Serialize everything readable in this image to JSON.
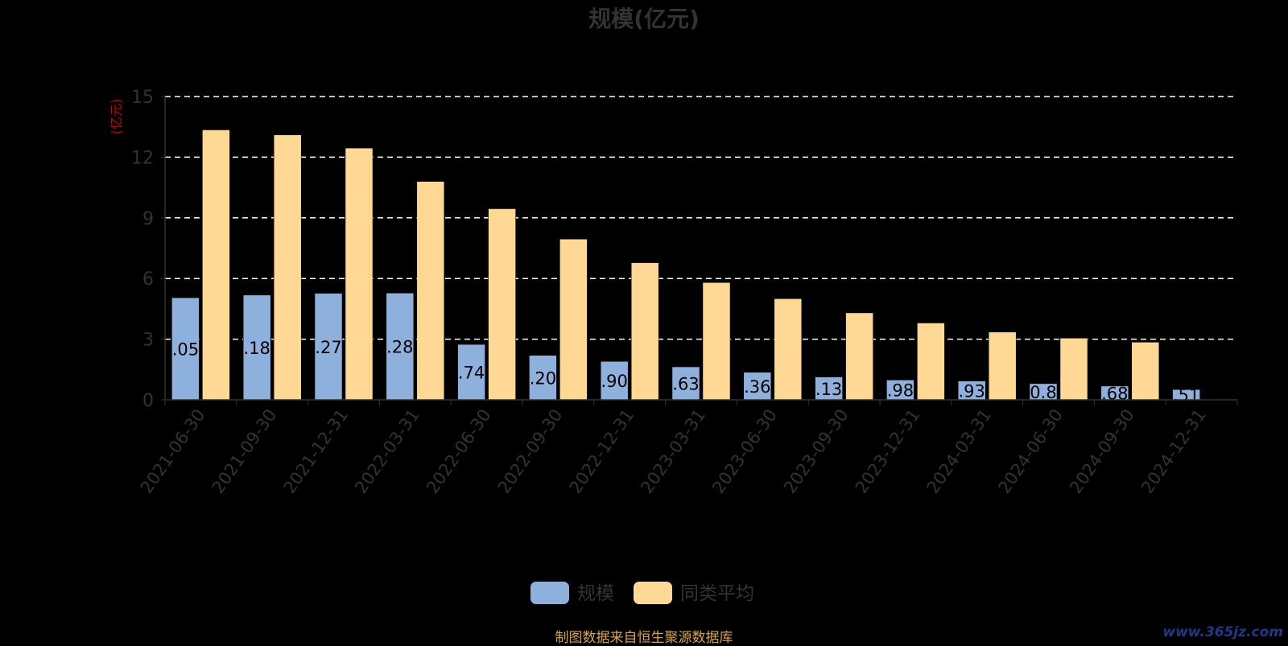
{
  "title": "规模(亿元)",
  "footer": "制图数据来自恒生聚源数据库",
  "watermark": "www.365jz.com",
  "chart_data": {
    "type": "bar",
    "title": "规模(亿元)",
    "ylabel": "(亿元)",
    "xlabel": "",
    "ylim": [
      0,
      15
    ],
    "yticks": [
      0,
      3,
      6,
      9,
      12,
      15
    ],
    "grid": true,
    "legend_position": "bottom",
    "categories": [
      "2021-06-30",
      "2021-09-30",
      "2021-12-31",
      "2022-03-31",
      "2022-06-30",
      "2022-09-30",
      "2022-12-31",
      "2023-03-31",
      "2023-06-30",
      "2023-09-30",
      "2023-12-31",
      "2024-03-31",
      "2024-06-30",
      "2024-09-30",
      "2024-12-31"
    ],
    "series": [
      {
        "name": "规模",
        "color": "#8eb0dd",
        "values": [
          5.05,
          5.18,
          5.27,
          5.28,
          2.74,
          2.2,
          1.9,
          1.63,
          1.36,
          1.13,
          0.98,
          0.93,
          0.8,
          0.68,
          0.51
        ],
        "labels": [
          ".05",
          ".18",
          ".27",
          ".28",
          ".74",
          ".20",
          ".90",
          ".63",
          ".36",
          ".13",
          ".98",
          ".93",
          "0.8",
          ".68",
          ".51"
        ]
      },
      {
        "name": "同类平均",
        "color": "#ffd994",
        "values": [
          13.35,
          13.1,
          12.45,
          10.8,
          9.45,
          7.95,
          6.78,
          5.8,
          5.0,
          4.3,
          3.8,
          3.35,
          3.05,
          2.85,
          null
        ]
      }
    ]
  },
  "colors": {
    "axis": "#333333",
    "tick_text": "#333333",
    "grid": "#ffffff",
    "ylabel": "#cc0000",
    "bar_label": "#000000"
  }
}
